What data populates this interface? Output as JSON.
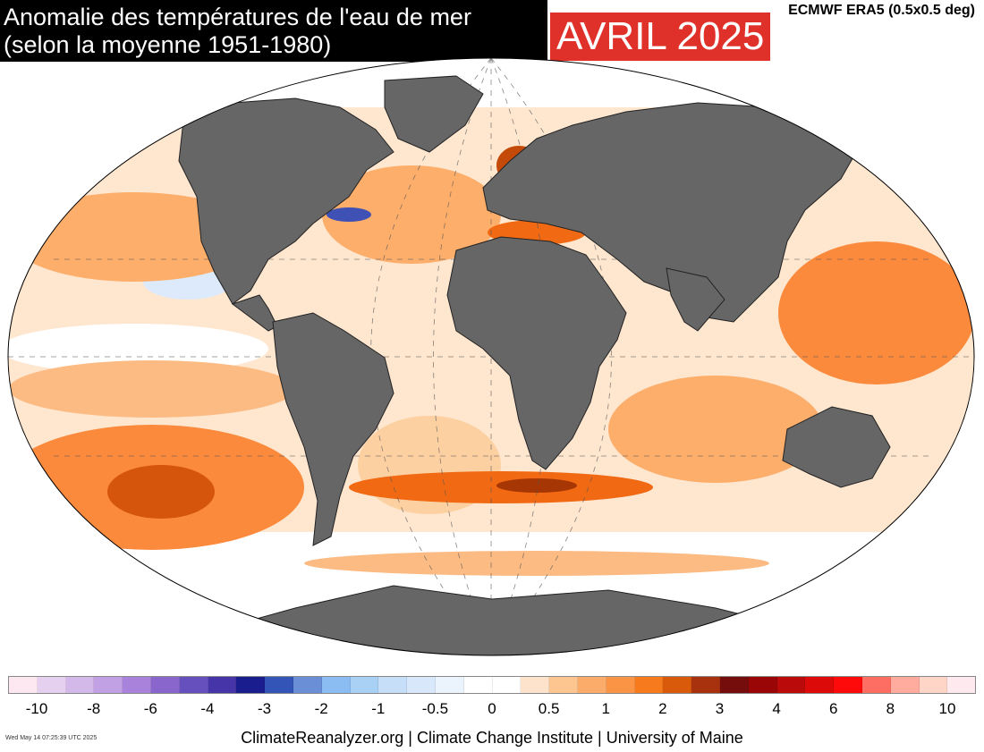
{
  "header": {
    "title_line1": "Anomalie des températures de l'eau de mer",
    "title_line2": "(selon la moyenne 1951-1980)",
    "period": "AVRIL 2025",
    "source": "ECMWF ERA5 (0.5x0.5 deg)"
  },
  "colors": {
    "land": "#666666",
    "warm_light": "#fdd0a2",
    "warm_mid": "#fdae6b",
    "warm_strong": "#f16913",
    "warm_extreme": "#a63603",
    "cool_light": "#c6dbef",
    "cool_strong": "#3f51b5"
  },
  "legend": {
    "ticks": [
      "-10",
      "-8",
      "-6",
      "-4",
      "-3",
      "-2",
      "-1",
      "-0.5",
      "0",
      "0.5",
      "1",
      "2",
      "3",
      "4",
      "6",
      "8",
      "10"
    ],
    "unit": "",
    "colors": [
      "#fde8f2",
      "#e5d0f0",
      "#d3b8ea",
      "#c1a0e3",
      "#a982dc",
      "#8866cc",
      "#6650bd",
      "#4535a8",
      "#1a1d8e",
      "#3455b8",
      "#6a8fd6",
      "#8cbdf2",
      "#a9d0f5",
      "#c6def8",
      "#d8e8fa",
      "#ebf4fd",
      "#ffffff",
      "#ffffff",
      "#fde2cc",
      "#fdc690",
      "#fcac6a",
      "#fb9444",
      "#f77b1c",
      "#d95a0b",
      "#a8320e",
      "#760d0d",
      "#9a0606",
      "#bb0a0a",
      "#dd0a0a",
      "#ff0a0a",
      "#ff6e63",
      "#ffab9e",
      "#ffd5c8",
      "#fde9ee"
    ]
  },
  "footer": {
    "timestamp": "Wed May 14 07:25:39 UTC 2025",
    "credit": "ClimateReanalyzer.org | Climate Change Institute | University of Maine"
  }
}
